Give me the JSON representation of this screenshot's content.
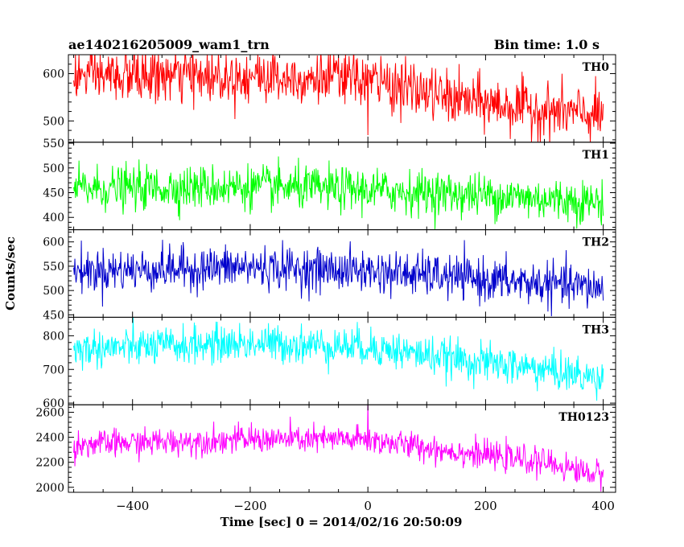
{
  "header": {
    "left": "ae140216205009_wam1_trn",
    "right": "Bin time: 1.0 s"
  },
  "chart_data": {
    "type": "line",
    "title": "ae140216205009_wam1_trn",
    "xlabel": "Time [sec] 0 = 2014/02/16 20:50:09",
    "ylabel": "Counts/sec",
    "bin_time_s": 1.0,
    "xlim": [
      -509,
      421
    ],
    "x_ticks": [
      -400,
      -200,
      0,
      200,
      400
    ],
    "legend": "none",
    "grid": false,
    "panels": [
      {
        "name": "TH0",
        "color": "#ff0000",
        "ylim": [
          455,
          640
        ],
        "y_ticks": [
          500,
          600
        ],
        "y_tick_labels": [
          "500",
          "600"
        ],
        "trend": [
          [
            -500,
            595
          ],
          [
            -200,
            595
          ],
          [
            0,
            588
          ],
          [
            150,
            545
          ],
          [
            300,
            522
          ],
          [
            400,
            510
          ]
        ],
        "noise_sd": 28,
        "spikes": [
          [
            0,
            470
          ]
        ]
      },
      {
        "name": "TH1",
        "color": "#00ff00",
        "ylim": [
          375,
          552
        ],
        "y_ticks": [
          400,
          450,
          500,
          550
        ],
        "y_tick_labels": [
          "400",
          "450",
          "500",
          "550"
        ],
        "trend": [
          [
            -500,
            458
          ],
          [
            -200,
            462
          ],
          [
            0,
            455
          ],
          [
            200,
            445
          ],
          [
            400,
            430
          ]
        ],
        "noise_sd": 22,
        "spikes": []
      },
      {
        "name": "TH2",
        "color": "#0000cc",
        "ylim": [
          445,
          625
        ],
        "y_ticks": [
          450,
          500,
          550,
          600
        ],
        "y_tick_labels": [
          "450",
          "500",
          "550",
          "600"
        ],
        "trend": [
          [
            -500,
            540
          ],
          [
            -200,
            548
          ],
          [
            0,
            540
          ],
          [
            200,
            522
          ],
          [
            400,
            505
          ]
        ],
        "noise_sd": 22,
        "spikes": []
      },
      {
        "name": "TH3",
        "color": "#00ffff",
        "ylim": [
          595,
          855
        ],
        "y_ticks": [
          600,
          700,
          800
        ],
        "y_tick_labels": [
          "600",
          "700",
          "800"
        ],
        "trend": [
          [
            -500,
            760
          ],
          [
            -200,
            778
          ],
          [
            0,
            768
          ],
          [
            150,
            730
          ],
          [
            300,
            700
          ],
          [
            400,
            670
          ]
        ],
        "noise_sd": 28,
        "spikes": []
      },
      {
        "name": "TH0123",
        "color": "#ff00ff",
        "ylim": [
          1960,
          2660
        ],
        "y_ticks": [
          2000,
          2200,
          2400,
          2600
        ],
        "y_tick_labels": [
          "2000",
          "2200",
          "2400",
          "2600"
        ],
        "trend": [
          [
            -500,
            2340
          ],
          [
            -200,
            2385
          ],
          [
            0,
            2380
          ],
          [
            200,
            2255
          ],
          [
            300,
            2200
          ],
          [
            400,
            2090
          ]
        ],
        "noise_sd": 55,
        "spikes": [
          [
            0,
            2700
          ]
        ]
      }
    ]
  }
}
